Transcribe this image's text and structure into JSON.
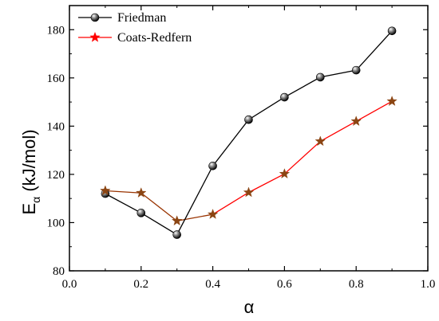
{
  "chart_data": {
    "type": "line",
    "xlabel": "α",
    "ylabel_main": "E",
    "ylabel_sub": "α",
    "ylabel_rest": " (kJ/mol)",
    "xlim": [
      0.0,
      1.0
    ],
    "ylim": [
      80,
      190
    ],
    "xticks": [
      0.0,
      0.2,
      0.4,
      0.6,
      0.8,
      1.0
    ],
    "xtick_labels": [
      "0.0",
      "0.2",
      "0.4",
      "0.6",
      "0.8",
      "1.0"
    ],
    "yticks": [
      80,
      100,
      120,
      140,
      160,
      180
    ],
    "ytick_labels": [
      "80",
      "100",
      "120",
      "140",
      "160",
      "180"
    ],
    "grid": false,
    "legend_position": "top-left",
    "series": [
      {
        "name": "Friedman",
        "color": "#000000",
        "marker": "sphere",
        "x": [
          0.1,
          0.2,
          0.3,
          0.4,
          0.5,
          0.6,
          0.7,
          0.8,
          0.9
        ],
        "y": [
          112,
          104,
          95,
          123.5,
          142.7,
          152,
          160.3,
          163.2,
          179.5
        ]
      },
      {
        "name": "Coats-Redfern",
        "color": "#ff0000",
        "line_color_low": "#993300",
        "marker": "star",
        "marker_color": "#8b4513",
        "x": [
          0.1,
          0.2,
          0.3,
          0.4,
          0.5,
          0.6,
          0.7,
          0.8,
          0.9
        ],
        "y": [
          113.2,
          112.3,
          100.7,
          103.4,
          112.5,
          120.2,
          133.7,
          142,
          150.3
        ]
      }
    ]
  }
}
